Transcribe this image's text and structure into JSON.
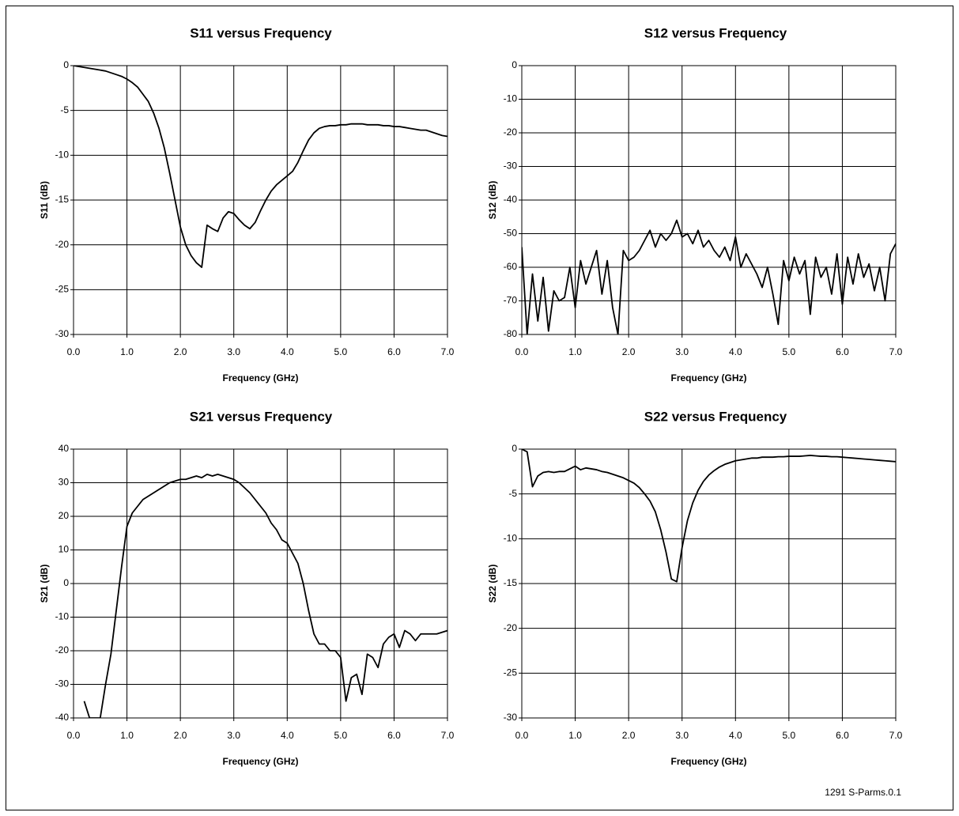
{
  "chart_data": [
    {
      "type": "line",
      "title": "S11 versus Frequency",
      "xlabel": "Frequency (GHz)",
      "ylabel": "S11 (dB)",
      "color": "#000000",
      "grid": true,
      "x": [
        0,
        0.1,
        0.2,
        0.3,
        0.4,
        0.5,
        0.6,
        0.7,
        0.8,
        0.9,
        1,
        1.1,
        1.2,
        1.3,
        1.4,
        1.5,
        1.6,
        1.7,
        1.8,
        1.9,
        2,
        2.1,
        2.2,
        2.3,
        2.4,
        2.5,
        2.6,
        2.7,
        2.8,
        2.9,
        3,
        3.1,
        3.2,
        3.3,
        3.4,
        3.5,
        3.6,
        3.7,
        3.8,
        3.9,
        4,
        4.1,
        4.2,
        4.3,
        4.4,
        4.5,
        4.6,
        4.7,
        4.8,
        4.9,
        5,
        5.1,
        5.2,
        5.3,
        5.4,
        5.5,
        5.6,
        5.7,
        5.8,
        5.9,
        6,
        6.1,
        6.2,
        6.3,
        6.4,
        6.5,
        6.6,
        6.7,
        6.8,
        6.9,
        7
      ],
      "values": [
        0,
        -0.1,
        -0.2,
        -0.3,
        -0.4,
        -0.5,
        -0.6,
        -0.8,
        -1.0,
        -1.2,
        -1.5,
        -1.9,
        -2.4,
        -3.2,
        -4.0,
        -5.3,
        -7.0,
        -9.2,
        -12.0,
        -15.0,
        -18.0,
        -20.0,
        -21.2,
        -22.0,
        -22.5,
        -17.8,
        -18.2,
        -18.5,
        -17.0,
        -16.3,
        -16.5,
        -17.2,
        -17.8,
        -18.2,
        -17.5,
        -16.2,
        -15.0,
        -14.0,
        -13.3,
        -12.8,
        -12.3,
        -11.8,
        -10.8,
        -9.5,
        -8.3,
        -7.5,
        -7.0,
        -6.8,
        -6.7,
        -6.7,
        -6.6,
        -6.6,
        -6.5,
        -6.5,
        -6.5,
        -6.6,
        -6.6,
        -6.6,
        -6.7,
        -6.7,
        -6.8,
        -6.8,
        -6.9,
        -7.0,
        -7.1,
        -7.2,
        -7.2,
        -7.4,
        -7.6,
        -7.8,
        -7.9
      ],
      "xlim": [
        0,
        7
      ],
      "xticks": [
        {
          "value": 0,
          "label": "0.0"
        },
        {
          "value": 1,
          "label": "1.0"
        },
        {
          "value": 2,
          "label": "2.0"
        },
        {
          "value": 3,
          "label": "3.0"
        },
        {
          "value": 4,
          "label": "4.0"
        },
        {
          "value": 5,
          "label": "5.0"
        },
        {
          "value": 6,
          "label": "6.0"
        },
        {
          "value": 7,
          "label": "7.0"
        }
      ],
      "ylim": [
        -30,
        0
      ],
      "yticks": [
        -30,
        -25,
        -20,
        -15,
        -10,
        -5,
        0
      ]
    },
    {
      "type": "line",
      "title": "S12 versus Frequency",
      "xlabel": "Frequency (GHz)",
      "ylabel": "S12 (dB)",
      "color": "#000000",
      "grid": true,
      "x": [
        0,
        0.1,
        0.2,
        0.3,
        0.4,
        0.5,
        0.6,
        0.7,
        0.8,
        0.9,
        1,
        1.1,
        1.2,
        1.3,
        1.4,
        1.5,
        1.6,
        1.7,
        1.8,
        1.9,
        2,
        2.1,
        2.2,
        2.3,
        2.4,
        2.5,
        2.6,
        2.7,
        2.8,
        2.9,
        3,
        3.1,
        3.2,
        3.3,
        3.4,
        3.5,
        3.6,
        3.7,
        3.8,
        3.9,
        4,
        4.1,
        4.2,
        4.3,
        4.4,
        4.5,
        4.6,
        4.7,
        4.8,
        4.9,
        5,
        5.1,
        5.2,
        5.3,
        5.4,
        5.5,
        5.6,
        5.7,
        5.8,
        5.9,
        6,
        6.1,
        6.2,
        6.3,
        6.4,
        6.5,
        6.6,
        6.7,
        6.8,
        6.9,
        7
      ],
      "values": [
        -54,
        -80,
        -62,
        -76,
        -63,
        -79,
        -67,
        -70,
        -69,
        -60,
        -72,
        -58,
        -65,
        -60,
        -55,
        -68,
        -58,
        -72,
        -80,
        -55,
        -58,
        -57,
        -55,
        -52,
        -49,
        -54,
        -50,
        -52,
        -50,
        -46,
        -51,
        -50,
        -53,
        -49,
        -54,
        -52,
        -55,
        -57,
        -54,
        -58,
        -51,
        -60,
        -56,
        -59,
        -62,
        -66,
        -60,
        -68,
        -77,
        -58,
        -64,
        -57,
        -62,
        -58,
        -74,
        -57,
        -63,
        -60,
        -68,
        -56,
        -71,
        -57,
        -65,
        -56,
        -63,
        -59,
        -67,
        -60,
        -70,
        -56,
        -53
      ],
      "xlim": [
        0,
        7
      ],
      "xticks": [
        {
          "value": 0,
          "label": "0.0"
        },
        {
          "value": 1,
          "label": "1.0"
        },
        {
          "value": 2,
          "label": "2.0"
        },
        {
          "value": 3,
          "label": "3.0"
        },
        {
          "value": 4,
          "label": "4.0"
        },
        {
          "value": 5,
          "label": "5.0"
        },
        {
          "value": 6,
          "label": "6.0"
        },
        {
          "value": 7,
          "label": "7.0"
        }
      ],
      "ylim": [
        -80,
        0
      ],
      "yticks": [
        -80,
        -70,
        -60,
        -50,
        -40,
        -30,
        -20,
        -10,
        0
      ]
    },
    {
      "type": "line",
      "title": "S21 versus Frequency",
      "xlabel": "Frequency (GHz)",
      "ylabel": "S21 (dB)",
      "color": "#000000",
      "grid": true,
      "x": [
        0,
        0.1,
        0.2,
        0.3,
        0.4,
        0.5,
        0.6,
        0.7,
        0.8,
        0.9,
        1,
        1.1,
        1.2,
        1.3,
        1.4,
        1.5,
        1.6,
        1.7,
        1.8,
        1.9,
        2,
        2.1,
        2.2,
        2.3,
        2.4,
        2.5,
        2.6,
        2.7,
        2.8,
        2.9,
        3,
        3.1,
        3.2,
        3.3,
        3.4,
        3.5,
        3.6,
        3.7,
        3.8,
        3.9,
        4,
        4.1,
        4.2,
        4.3,
        4.4,
        4.5,
        4.6,
        4.7,
        4.8,
        4.9,
        5,
        5.1,
        5.2,
        5.3,
        5.4,
        5.5,
        5.6,
        5.7,
        5.8,
        5.9,
        6,
        6.1,
        6.2,
        6.3,
        6.4,
        6.5,
        6.6,
        6.7,
        6.8,
        6.9,
        7
      ],
      "values": [
        null,
        null,
        -35,
        -40,
        -40,
        -40,
        -30,
        -21,
        -8,
        5,
        17,
        21,
        23,
        25,
        26,
        27,
        28,
        29,
        30,
        30.5,
        31,
        31,
        31.5,
        32,
        31.5,
        32.5,
        32,
        32.5,
        32,
        31.5,
        31,
        30,
        28.5,
        27,
        25,
        23,
        21,
        18,
        16,
        13,
        12,
        9,
        6,
        0,
        -8,
        -15,
        -18,
        -18,
        -20,
        -20,
        -22,
        -35,
        -28,
        -27,
        -33,
        -21,
        -22,
        -25,
        -18,
        -16,
        -15,
        -19,
        -14,
        -15,
        -17,
        -15,
        -15,
        -15,
        -15,
        -14.5,
        -14
      ],
      "xlim": [
        0,
        7
      ],
      "xticks": [
        {
          "value": 0,
          "label": "0.0"
        },
        {
          "value": 1,
          "label": "1.0"
        },
        {
          "value": 2,
          "label": "2.0"
        },
        {
          "value": 3,
          "label": "3.0"
        },
        {
          "value": 4,
          "label": "4.0"
        },
        {
          "value": 5,
          "label": "5.0"
        },
        {
          "value": 6,
          "label": "6.0"
        },
        {
          "value": 7,
          "label": "7.0"
        }
      ],
      "ylim": [
        -40,
        40
      ],
      "yticks": [
        -40,
        -30,
        -20,
        -10,
        0,
        10,
        20,
        30,
        40
      ]
    },
    {
      "type": "line",
      "title": "S22 versus Frequency",
      "xlabel": "Frequency (GHz)",
      "ylabel": "S22 (dB)",
      "color": "#000000",
      "grid": true,
      "x": [
        0,
        0.1,
        0.2,
        0.3,
        0.4,
        0.5,
        0.6,
        0.7,
        0.8,
        0.9,
        1,
        1.1,
        1.2,
        1.3,
        1.4,
        1.5,
        1.6,
        1.7,
        1.8,
        1.9,
        2,
        2.1,
        2.2,
        2.3,
        2.4,
        2.5,
        2.6,
        2.7,
        2.8,
        2.9,
        3,
        3.1,
        3.2,
        3.3,
        3.4,
        3.5,
        3.6,
        3.7,
        3.8,
        3.9,
        4,
        4.1,
        4.2,
        4.3,
        4.4,
        4.5,
        4.6,
        4.7,
        4.8,
        4.9,
        5,
        5.1,
        5.2,
        5.3,
        5.4,
        5.5,
        5.6,
        5.7,
        5.8,
        5.9,
        6,
        6.1,
        6.2,
        6.3,
        6.4,
        6.5,
        6.6,
        6.7,
        6.8,
        6.9,
        7
      ],
      "values": [
        0,
        -0.3,
        -4.2,
        -3.0,
        -2.6,
        -2.5,
        -2.6,
        -2.5,
        -2.5,
        -2.2,
        -1.9,
        -2.3,
        -2.1,
        -2.2,
        -2.3,
        -2.5,
        -2.6,
        -2.8,
        -3.0,
        -3.2,
        -3.5,
        -3.8,
        -4.3,
        -5.0,
        -5.8,
        -7.0,
        -9.0,
        -11.5,
        -14.5,
        -14.8,
        -11.0,
        -8.0,
        -6.0,
        -4.6,
        -3.6,
        -2.9,
        -2.4,
        -2.0,
        -1.7,
        -1.5,
        -1.3,
        -1.2,
        -1.1,
        -1.0,
        -1.0,
        -0.9,
        -0.9,
        -0.9,
        -0.85,
        -0.85,
        -0.8,
        -0.8,
        -0.8,
        -0.75,
        -0.7,
        -0.75,
        -0.8,
        -0.8,
        -0.85,
        -0.85,
        -0.9,
        -0.95,
        -1.0,
        -1.05,
        -1.1,
        -1.15,
        -1.2,
        -1.25,
        -1.3,
        -1.35,
        -1.4
      ],
      "xlim": [
        0,
        7
      ],
      "xticks": [
        {
          "value": 0,
          "label": "0.0"
        },
        {
          "value": 1,
          "label": "1.0"
        },
        {
          "value": 2,
          "label": "2.0"
        },
        {
          "value": 3,
          "label": "3.0"
        },
        {
          "value": 4,
          "label": "4.0"
        },
        {
          "value": 5,
          "label": "5.0"
        },
        {
          "value": 6,
          "label": "6.0"
        },
        {
          "value": 7,
          "label": "7.0"
        }
      ],
      "ylim": [
        -30,
        0
      ],
      "yticks": [
        -30,
        -25,
        -20,
        -15,
        -10,
        -5,
        0
      ]
    }
  ],
  "footnote": "1291 S-Parms.0.1"
}
